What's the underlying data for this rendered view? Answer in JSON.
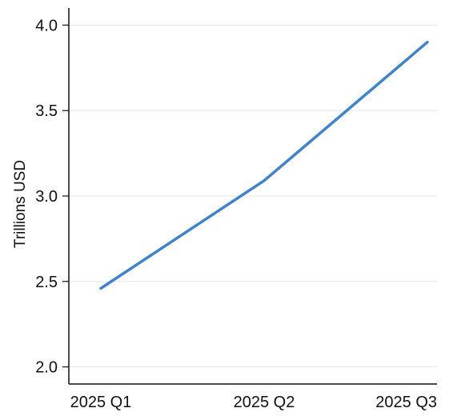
{
  "chart_data": {
    "type": "line",
    "title": "",
    "xlabel": "",
    "ylabel": "Trillions USD",
    "categories": [
      "2025 Q1",
      "2025 Q2",
      "2025 Q3"
    ],
    "series": [
      {
        "values": [
          2.46,
          3.09,
          3.9
        ]
      }
    ],
    "ylim": [
      1.9,
      4.1
    ],
    "yticks": [
      2.0,
      2.5,
      3.0,
      3.5,
      4.0
    ],
    "ytick_labels": [
      "2.0",
      "2.5",
      "3.0",
      "3.5",
      "4.0"
    ],
    "grid": "horizontal",
    "legend": "none",
    "colors": {
      "line": "#3f83cc",
      "grid": "#e3e3e3",
      "axis": "#111111"
    }
  }
}
